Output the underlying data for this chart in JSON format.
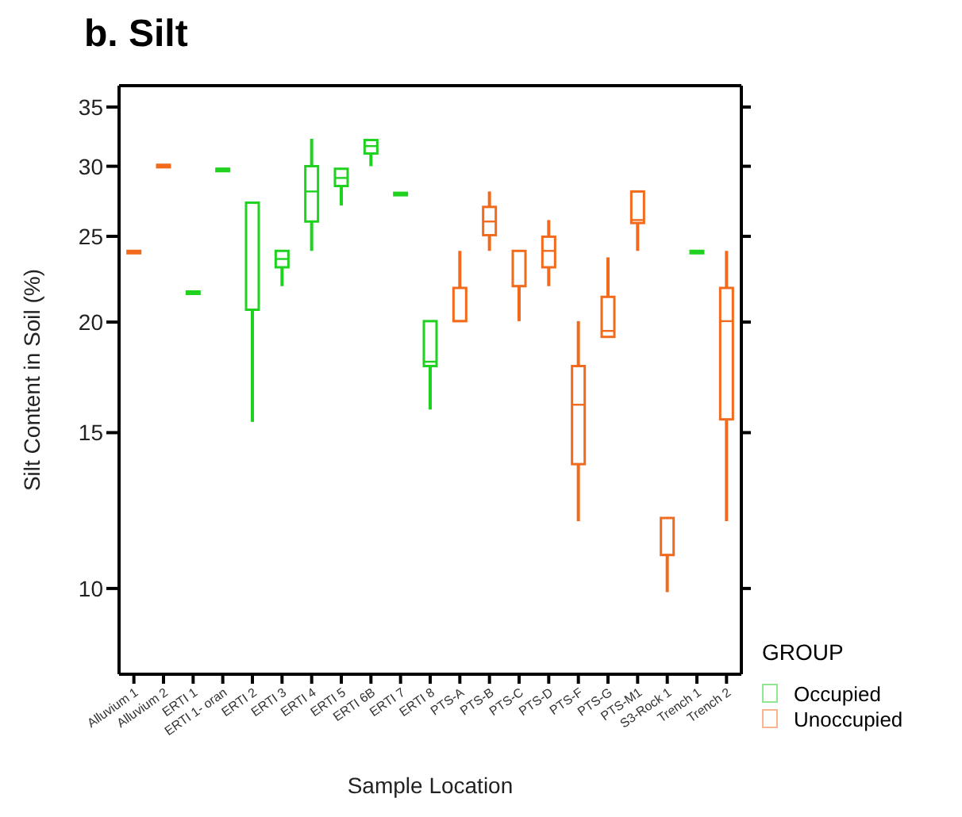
{
  "chart_data": {
    "type": "box",
    "title": "b. Silt",
    "xlabel": "Sample Location",
    "ylabel": "Silt Content in Soil (%)",
    "legend_title": "GROUP",
    "legend": "right",
    "log": "y",
    "grid": false,
    "categories": [
      "Alluvium 1",
      "Alluvium 2",
      "ERTI 1",
      "ERTI 1- oran",
      "ERTI 2",
      "ERTI 3",
      "ERTI 4",
      "ERTI 5",
      "ERTI 6B",
      "ERTI 7",
      "ERTI 8",
      "PTS-A",
      "PTS-B",
      "PTS-C",
      "PTS-D",
      "PTS-F",
      "PTS-G",
      "PTS-M1",
      "S3-Rock 1",
      "Trench 1",
      "Trench 2"
    ],
    "ylim": [
      8,
      37
    ],
    "yticks": [
      10,
      15,
      20,
      25,
      30,
      35
    ],
    "series": [
      {
        "name": "Occupied",
        "color": "#1fd21f",
        "boxes": [
          null,
          null,
          {
            "low": 21.6,
            "q1": 21.6,
            "median": 21.6,
            "q3": 21.6,
            "high": 21.6
          },
          {
            "low": 29.7,
            "q1": 29.7,
            "median": 29.7,
            "q3": 29.7,
            "high": 29.7
          },
          {
            "low": 15.4,
            "q1": 20.6,
            "median": 20.6,
            "q3": 27.2,
            "high": 27.2
          },
          {
            "low": 21.9,
            "q1": 23.0,
            "median": 23.5,
            "q3": 24.0,
            "high": 24.0
          },
          {
            "low": 24.0,
            "q1": 25.9,
            "median": 28.0,
            "q3": 29.9,
            "high": 32.1
          },
          {
            "low": 27.0,
            "q1": 28.4,
            "median": 29.0,
            "q3": 29.7,
            "high": 29.7
          },
          {
            "low": 29.9,
            "q1": 30.9,
            "median": 31.5,
            "q3": 32.0,
            "high": 32.0
          },
          {
            "low": 27.9,
            "q1": 27.9,
            "median": 27.9,
            "q3": 27.9,
            "high": 27.9
          },
          {
            "low": 15.9,
            "q1": 17.8,
            "median": 18.0,
            "q3": 20.0,
            "high": 20.0
          },
          null,
          null,
          null,
          null,
          null,
          null,
          null,
          null,
          {
            "low": 24.0,
            "q1": 24.0,
            "median": 24.0,
            "q3": 24.0,
            "high": 24.0
          },
          null
        ]
      },
      {
        "name": "Unoccupied",
        "color": "#f26b1d",
        "boxes": [
          {
            "low": 24.0,
            "q1": 24.0,
            "median": 24.0,
            "q3": 24.0,
            "high": 24.0
          },
          {
            "low": 30.0,
            "q1": 30.0,
            "median": 30.0,
            "q3": 30.0,
            "high": 30.0
          },
          null,
          null,
          null,
          null,
          null,
          null,
          null,
          null,
          null,
          {
            "low": 20.0,
            "q1": 20.0,
            "median": 20.0,
            "q3": 21.8,
            "high": 24.0
          },
          {
            "low": 24.0,
            "q1": 25.0,
            "median": 25.9,
            "q3": 26.9,
            "high": 28.0
          },
          {
            "low": 20.0,
            "q1": 21.9,
            "median": 21.9,
            "q3": 24.0,
            "high": 24.0
          },
          {
            "low": 21.9,
            "q1": 23.0,
            "median": 24.0,
            "q3": 24.9,
            "high": 26.0
          },
          {
            "low": 11.9,
            "q1": 13.8,
            "median": 16.1,
            "q3": 17.8,
            "high": 20.0
          },
          {
            "low": 19.2,
            "q1": 19.2,
            "median": 19.5,
            "q3": 21.3,
            "high": 23.6
          },
          {
            "low": 24.0,
            "q1": 25.8,
            "median": 26.0,
            "q3": 28.0,
            "high": 28.0
          },
          {
            "low": 9.9,
            "q1": 10.9,
            "median": 10.9,
            "q3": 12.0,
            "high": 12.0
          },
          null,
          {
            "low": 11.9,
            "q1": 15.5,
            "median": 20.0,
            "q3": 21.8,
            "high": 24.0
          }
        ]
      }
    ]
  }
}
